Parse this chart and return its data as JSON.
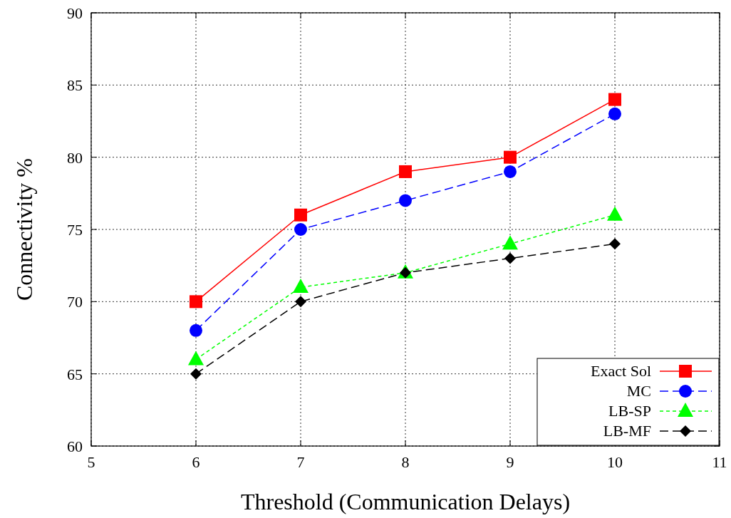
{
  "chart_data": {
    "type": "line",
    "xlabel": "Threshold (Communication Delays)",
    "ylabel": "Connectivity %",
    "x": [
      6,
      7,
      8,
      9,
      10
    ],
    "series": [
      {
        "name": "Exact Sol",
        "color": "#ff0000",
        "values": [
          70,
          76,
          79,
          80,
          84
        ],
        "marker": "square",
        "line_style": "solid"
      },
      {
        "name": "MC",
        "color": "#0000ff",
        "values": [
          68,
          75,
          77,
          79,
          83
        ],
        "marker": "circle",
        "line_style": "dashed"
      },
      {
        "name": "LB-SP",
        "color": "#00ff00",
        "values": [
          66,
          71,
          72,
          74,
          76
        ],
        "marker": "triangle",
        "line_style": "dotted"
      },
      {
        "name": "LB-MF",
        "color": "#000000",
        "values": [
          65,
          70,
          72,
          73,
          74
        ],
        "marker": "diamond",
        "line_style": "dashed"
      }
    ],
    "xlim": [
      5,
      11
    ],
    "xticks": [
      5,
      6,
      7,
      8,
      9,
      10,
      11
    ],
    "ylim": [
      60,
      90
    ],
    "yticks": [
      60,
      65,
      70,
      75,
      80,
      85,
      90
    ],
    "grid": true,
    "legend": "bottom right"
  }
}
